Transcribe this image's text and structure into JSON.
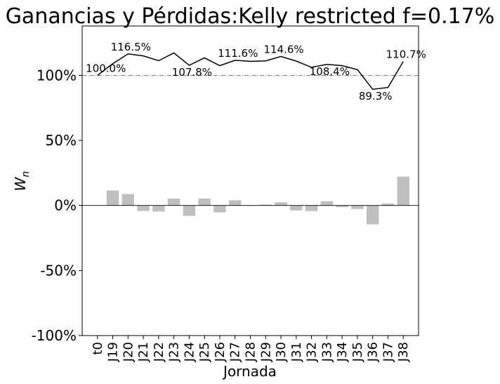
{
  "chart_data": {
    "type": "bar+line",
    "title": "Ganancias y Pérdidas:Kelly restricted f=0.17%",
    "xlabel": "Jornada",
    "ylabel": "W",
    "ylabel_sub": "n",
    "ylim": [
      -100,
      138
    ],
    "yticks": [
      -100,
      -50,
      0,
      50,
      100
    ],
    "ytick_labels": [
      "-100%",
      "-50%",
      "0%",
      "50%",
      "100%"
    ],
    "reference_line": 100,
    "categories": [
      "t0",
      "J19",
      "J20",
      "J21",
      "J22",
      "J23",
      "J24",
      "J25",
      "J26",
      "J27",
      "J28",
      "J29",
      "J30",
      "J31",
      "J32",
      "J33",
      "J34",
      "J35",
      "J36",
      "J37",
      "J38"
    ],
    "bar_values": [
      0,
      11.5,
      8.8,
      -4.2,
      -4.6,
      5.3,
      -8.0,
      5.3,
      -5.3,
      4.0,
      -0.3,
      0.7,
      2.5,
      -3.8,
      -4.3,
      3.3,
      -1.3,
      -2.7,
      -14.5,
      1.5,
      22.2
    ],
    "line_values": [
      100.0,
      109.0,
      116.5,
      115.0,
      111.3,
      117.3,
      107.8,
      113.5,
      107.5,
      111.6,
      110.8,
      111.2,
      114.6,
      111.0,
      106.2,
      108.4,
      107.5,
      104.5,
      89.3,
      90.7,
      110.7
    ],
    "annotations": [
      {
        "index": 0,
        "label": "100.0%",
        "pos": "above"
      },
      {
        "index": 2,
        "label": "116.5%",
        "pos": "above"
      },
      {
        "index": 6,
        "label": "107.8%",
        "pos": "below"
      },
      {
        "index": 9,
        "label": "111.6%",
        "pos": "above"
      },
      {
        "index": 12,
        "label": "114.6%",
        "pos": "above"
      },
      {
        "index": 15,
        "label": "108.4%",
        "pos": "below"
      },
      {
        "index": 18,
        "label": "89.3%",
        "pos": "below"
      },
      {
        "index": 20,
        "label": "110.7%",
        "pos": "above"
      }
    ],
    "colors": {
      "bars": "#bfbfbf",
      "line": "#000000",
      "reference": "#555555",
      "zero": "#000000"
    }
  }
}
